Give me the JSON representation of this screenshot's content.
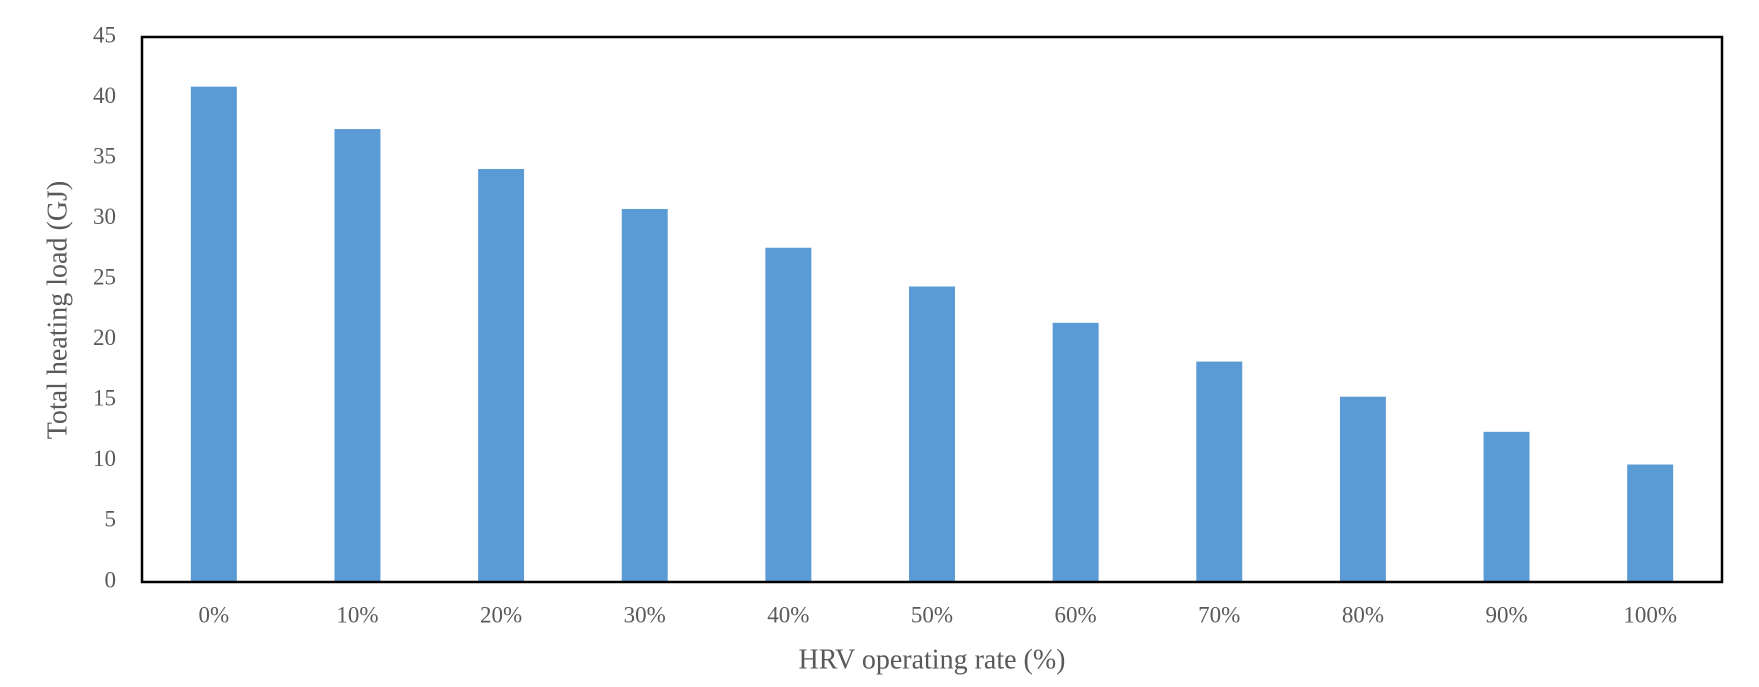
{
  "chart_data": {
    "type": "bar",
    "x_label": "HRV operating rate (%)",
    "y_label": "Total heating load (GJ)",
    "categories": [
      "0%",
      "10%",
      "20%",
      "30%",
      "40%",
      "50%",
      "60%",
      "70%",
      "80%",
      "90%",
      "100%"
    ],
    "values": [
      40.9,
      37.4,
      34.1,
      30.8,
      27.6,
      24.4,
      21.4,
      18.2,
      15.3,
      12.4,
      9.7
    ],
    "color": "#5b9bd5",
    "ylim": [
      0,
      45
    ],
    "yticks": [
      0,
      5,
      10,
      15,
      20,
      25,
      30,
      35,
      40,
      45
    ],
    "grid": false
  }
}
